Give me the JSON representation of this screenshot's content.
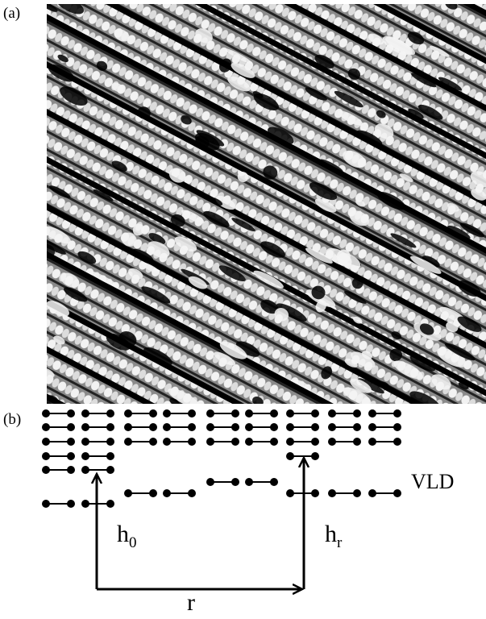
{
  "panels": [
    {
      "label": "(a)"
    },
    {
      "label": "(b)"
    }
  ],
  "diagram": {
    "annotation": "VLD",
    "height_left": {
      "base": "h",
      "sub": "0"
    },
    "height_right": {
      "base": "h",
      "sub": "r"
    },
    "distance": "r"
  }
}
